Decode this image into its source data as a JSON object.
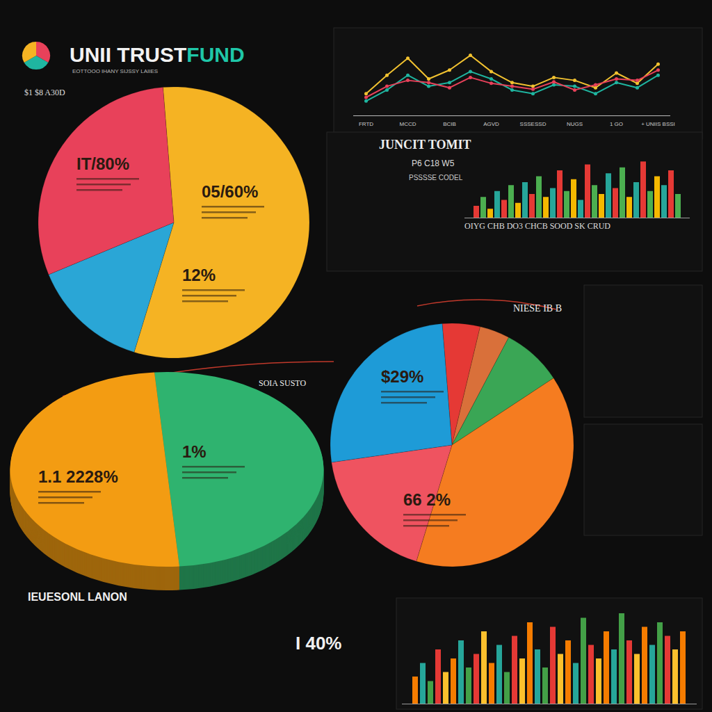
{
  "page": {
    "title": "UNII TRUST",
    "title_accent": "FUND",
    "subtitle": "EOTTOOO IHANY SIJSSY LAIIES",
    "labels": [
      "$1 $8 A30D",
      "JUNCIT TOMIT",
      "P6 C18 W5",
      "PSSSSE CODEL",
      "NIESE IB B",
      "SOIA SUSTO",
      "IEUESONL LANON",
      "I 40%"
    ]
  },
  "chart_data": [
    {
      "type": "pie",
      "values": [
        56,
        14,
        30
      ],
      "colors": [
        "#f5b323",
        "#2aa6d6",
        "#e8415a"
      ],
      "annotations": [
        "05/60%",
        "12%",
        "IT/80%"
      ]
    },
    {
      "type": "line",
      "categories": [
        "FRTD",
        null,
        "MCCD",
        null,
        "BCIB",
        null,
        "AGVD",
        null,
        "SSSESSD",
        null,
        "NUGS",
        null,
        "1 GO",
        null,
        "+ UNIIS BSSI"
      ],
      "series": [
        {
          "color": "#f2c230",
          "marker": "circle",
          "values": [
            30,
            55,
            78,
            50,
            62,
            82,
            60,
            45,
            40,
            52,
            48,
            38,
            58,
            44,
            70
          ]
        },
        {
          "color": "#1fb5a0",
          "marker": "circle",
          "values": [
            20,
            35,
            55,
            40,
            45,
            60,
            50,
            35,
            30,
            42,
            40,
            30,
            45,
            38,
            55
          ]
        },
        {
          "color": "#e8415a",
          "marker": "circle",
          "values": [
            25,
            40,
            48,
            45,
            38,
            52,
            44,
            40,
            36,
            46,
            35,
            42,
            50,
            48,
            62
          ]
        }
      ],
      "ylim": [
        0,
        100
      ],
      "tick_labels": "x"
    },
    {
      "type": "bar",
      "values": [
        20,
        35,
        15,
        45,
        30,
        55,
        25,
        60,
        40,
        70,
        35,
        50,
        80,
        45,
        65,
        30,
        90,
        55,
        40,
        75,
        50,
        85,
        35,
        60,
        95,
        45,
        70,
        55,
        80,
        40
      ],
      "colors": [
        "#e53935",
        "#4caf50",
        "#f5b800",
        "#26a69a",
        "#e53935",
        "#4caf50",
        "#f5b800",
        "#26a69a",
        "#e53935",
        "#4caf50",
        "#f5b800",
        "#26a69a",
        "#e53935",
        "#4caf50",
        "#f5b800",
        "#26a69a",
        "#e53935",
        "#4caf50",
        "#f5b800",
        "#26a69a",
        "#e53935",
        "#4caf50",
        "#f5b800",
        "#26a69a",
        "#e53935",
        "#4caf50",
        "#f5b800",
        "#26a69a",
        "#e53935",
        "#4caf50"
      ],
      "ylim": [
        0,
        100
      ],
      "tick_labels": false,
      "subtitle": "OIYG CHB DO3 CHCB SOOD SK CRUD"
    },
    {
      "type": "pie",
      "values": [
        5,
        4,
        8,
        39,
        18,
        26
      ],
      "colors": [
        "#e53935",
        "#d9703a",
        "#3aa655",
        "#f57c20",
        "#ef5360",
        "#1e9bd7"
      ],
      "annotations": [
        "66 2%",
        "$29%"
      ]
    },
    {
      "type": "pie",
      "values": [
        50,
        50
      ],
      "colors": [
        "#2fb36f",
        "#f39c12"
      ],
      "annotations": [
        "1%",
        "1.1 2228%"
      ]
    },
    {
      "type": "bar",
      "values": [
        30,
        45,
        25,
        60,
        35,
        50,
        70,
        40,
        55,
        80,
        45,
        65,
        35,
        75,
        50,
        90,
        60,
        40,
        85,
        55,
        70,
        45,
        95,
        65,
        50,
        80,
        60,
        100,
        70,
        55,
        85,
        65,
        90,
        75,
        60,
        80
      ],
      "colors": [
        "#f57c00",
        "#26a69a",
        "#43a047",
        "#e53935",
        "#fbc02d",
        "#f57c00",
        "#26a69a",
        "#43a047",
        "#e53935",
        "#fbc02d",
        "#f57c00",
        "#26a69a",
        "#43a047",
        "#e53935",
        "#fbc02d",
        "#f57c00",
        "#26a69a",
        "#43a047",
        "#e53935",
        "#fbc02d",
        "#f57c00",
        "#26a69a",
        "#43a047",
        "#e53935",
        "#fbc02d",
        "#f57c00",
        "#26a69a",
        "#43a047",
        "#e53935",
        "#fbc02d",
        "#f57c00",
        "#26a69a",
        "#43a047",
        "#e53935",
        "#fbc02d",
        "#f57c00"
      ],
      "ylim": [
        0,
        100
      ],
      "tick_labels": false
    }
  ]
}
